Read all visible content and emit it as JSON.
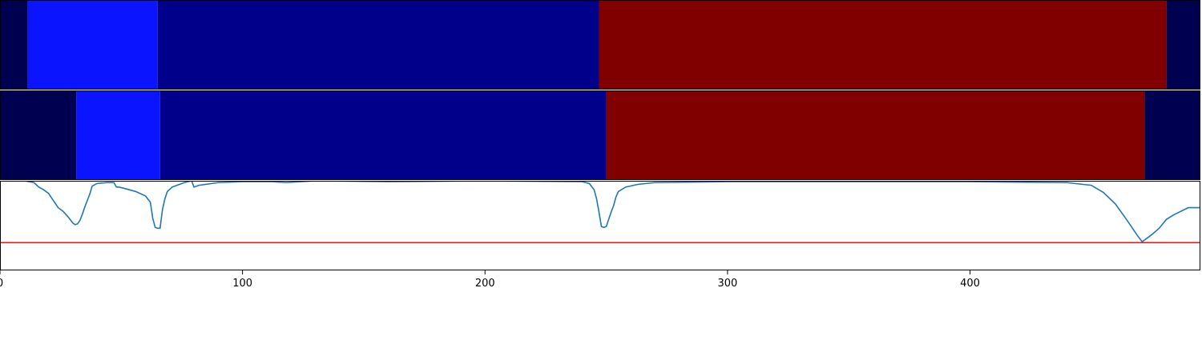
{
  "chart_data": [
    {
      "type": "heatmap",
      "title": "",
      "xlabel": "",
      "ylabel": "",
      "xlim": [
        0,
        495
      ],
      "segments": [
        {
          "start": 0,
          "end": 11.5,
          "color": "#000050"
        },
        {
          "start": 11.5,
          "end": 65,
          "color": "#0a14ff"
        },
        {
          "start": 65,
          "end": 247,
          "color": "#00008b"
        },
        {
          "start": 247,
          "end": 481,
          "color": "#800000"
        },
        {
          "start": 481,
          "end": 495,
          "color": "#000050"
        }
      ]
    },
    {
      "type": "heatmap",
      "title": "",
      "xlabel": "",
      "ylabel": "",
      "xlim": [
        0,
        495
      ],
      "segments": [
        {
          "start": 0,
          "end": 31.5,
          "color": "#000050"
        },
        {
          "start": 31.5,
          "end": 66,
          "color": "#0a14ff"
        },
        {
          "start": 66,
          "end": 250,
          "color": "#00008b"
        },
        {
          "start": 250,
          "end": 472,
          "color": "#800000"
        },
        {
          "start": 472,
          "end": 495,
          "color": "#000050"
        }
      ]
    },
    {
      "type": "line",
      "title": "",
      "xlabel": "",
      "ylabel": "",
      "xlim": [
        0,
        495
      ],
      "ylim": [
        0,
        1
      ],
      "grid": false,
      "threshold": {
        "y": 0.31,
        "color": "#e31a1c"
      },
      "x_ticks": [
        "0",
        "100",
        "200",
        "300",
        "400"
      ],
      "tick_values": [
        0,
        100,
        200,
        300,
        400
      ],
      "series": [
        {
          "color": "#1f77b4",
          "x": [
            0,
            10,
            14,
            16,
            18,
            20,
            22,
            24,
            26,
            28,
            30,
            31,
            32,
            33,
            34,
            35,
            36,
            37,
            38,
            40,
            44,
            47,
            48,
            49,
            52,
            56,
            60,
            62,
            63,
            64,
            65,
            66,
            67,
            68,
            69,
            71,
            73,
            76,
            79,
            80,
            82,
            90,
            100,
            112,
            118,
            130,
            160,
            200,
            240,
            243,
            245,
            246,
            247,
            248,
            249,
            250,
            251,
            252,
            253,
            254,
            255,
            258,
            263,
            270,
            300,
            350,
            400,
            440,
            450,
            455,
            460,
            465,
            469,
            471,
            473,
            475,
            478,
            481,
            484,
            487,
            490,
            495
          ],
          "y": [
            1.0,
            1.0,
            0.98,
            0.93,
            0.9,
            0.86,
            0.78,
            0.7,
            0.66,
            0.6,
            0.53,
            0.51,
            0.52,
            0.56,
            0.63,
            0.71,
            0.78,
            0.85,
            0.94,
            0.97,
            0.98,
            0.98,
            0.93,
            0.93,
            0.91,
            0.88,
            0.83,
            0.76,
            0.58,
            0.48,
            0.47,
            0.47,
            0.68,
            0.8,
            0.88,
            0.93,
            0.95,
            0.98,
            1.0,
            0.93,
            0.95,
            0.98,
            0.99,
            0.99,
            0.98,
            1.0,
            0.99,
            1.0,
            0.99,
            0.97,
            0.9,
            0.8,
            0.65,
            0.49,
            0.48,
            0.49,
            0.57,
            0.65,
            0.72,
            0.82,
            0.88,
            0.93,
            0.96,
            0.98,
            0.99,
            0.99,
            0.99,
            0.98,
            0.95,
            0.87,
            0.74,
            0.55,
            0.39,
            0.32,
            0.36,
            0.4,
            0.47,
            0.57,
            0.62,
            0.66,
            0.7,
            0.7
          ]
        }
      ]
    }
  ]
}
